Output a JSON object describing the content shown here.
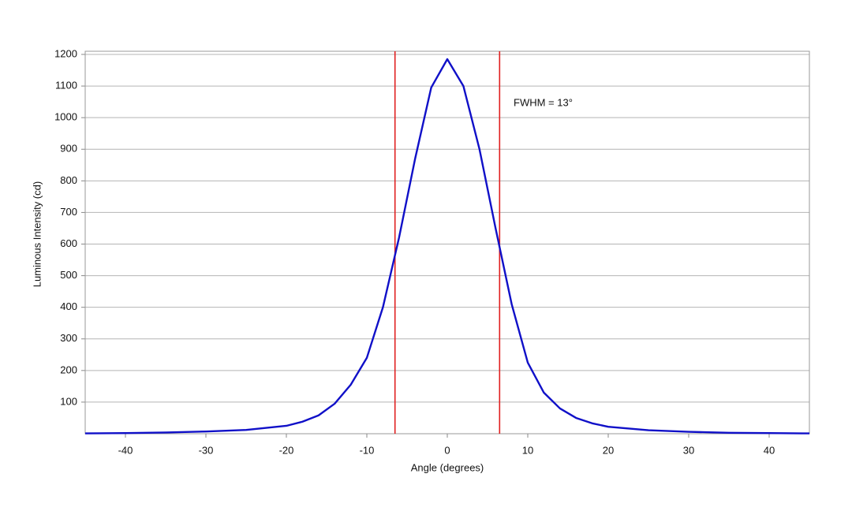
{
  "chart_data": {
    "type": "line",
    "xlabel": "Angle (degrees)",
    "ylabel": "Luminous Intensity (cd)",
    "annotation": "FWHM = 13°",
    "x": [
      -45,
      -40,
      -35,
      -30,
      -25,
      -20,
      -18,
      -16,
      -14,
      -12,
      -10,
      -8,
      -6,
      -4,
      -2,
      0,
      2,
      4,
      6,
      8,
      10,
      12,
      14,
      16,
      18,
      20,
      25,
      30,
      35,
      40,
      45
    ],
    "series": [
      {
        "name": "Luminous Intensity",
        "color": "#1010c8",
        "values": [
          1,
          2,
          4,
          7,
          12,
          25,
          38,
          58,
          95,
          155,
          240,
          400,
          620,
          870,
          1095,
          1185,
          1100,
          900,
          650,
          410,
          225,
          130,
          80,
          50,
          33,
          22,
          11,
          6,
          3,
          2,
          1
        ]
      }
    ],
    "vlines": {
      "x": [
        -6.5,
        6.5
      ],
      "color": "#e02020"
    },
    "xlim": [
      -45,
      45
    ],
    "ylim": [
      0,
      1210
    ],
    "xticks": [
      -40,
      -30,
      -20,
      -10,
      0,
      10,
      20,
      30,
      40
    ],
    "yticks": [
      100,
      200,
      300,
      400,
      500,
      600,
      700,
      800,
      900,
      1000,
      1100,
      1200
    ],
    "grid": true
  }
}
